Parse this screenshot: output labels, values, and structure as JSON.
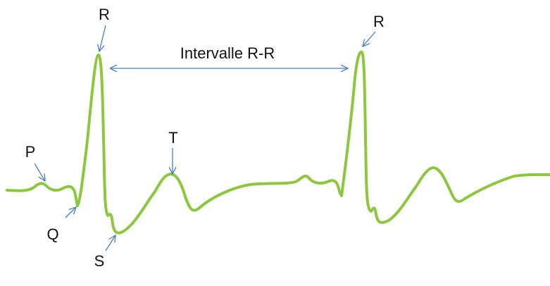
{
  "labels": {
    "r1": "R",
    "r2": "R",
    "p": "P",
    "q": "Q",
    "s": "S",
    "t": "T",
    "interval": "Intervalle R-R"
  }
}
